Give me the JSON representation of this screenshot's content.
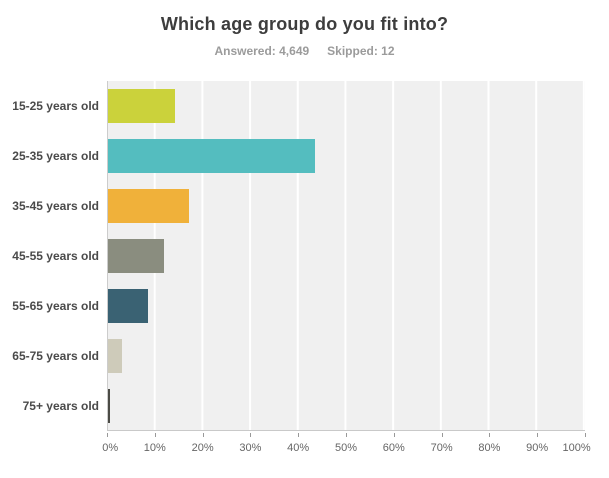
{
  "header": {
    "title": "Which age group do you fit into?",
    "answered_label": "Answered: 4,649",
    "skipped_label": "Skipped: 12"
  },
  "chart_data": {
    "type": "bar",
    "orientation": "horizontal",
    "title": "Which age group do you fit into?",
    "subtitle": "Answered: 4,649  Skipped: 12",
    "categories": [
      "15-25 years old",
      "25-35 years old",
      "35-45 years old",
      "45-55 years old",
      "55-65 years old",
      "65-75 years old",
      "75+ years old"
    ],
    "values": [
      14.0,
      43.5,
      16.9,
      11.7,
      8.4,
      2.9,
      0.4
    ],
    "unit": "%",
    "bar_colors": [
      "#cbd23b",
      "#54bdbf",
      "#f0b13a",
      "#8a8d7f",
      "#3a6273",
      "#cecbba",
      "#4b4b45"
    ],
    "x_ticks": [
      "0%",
      "10%",
      "20%",
      "30%",
      "40%",
      "50%",
      "60%",
      "70%",
      "80%",
      "90%",
      "100%"
    ],
    "xlim": [
      0,
      100
    ],
    "xlabel": "",
    "ylabel": "",
    "grid": true,
    "legend": "none",
    "plot_background": "#f0f0f0",
    "gridline_color": "#ffffff"
  }
}
